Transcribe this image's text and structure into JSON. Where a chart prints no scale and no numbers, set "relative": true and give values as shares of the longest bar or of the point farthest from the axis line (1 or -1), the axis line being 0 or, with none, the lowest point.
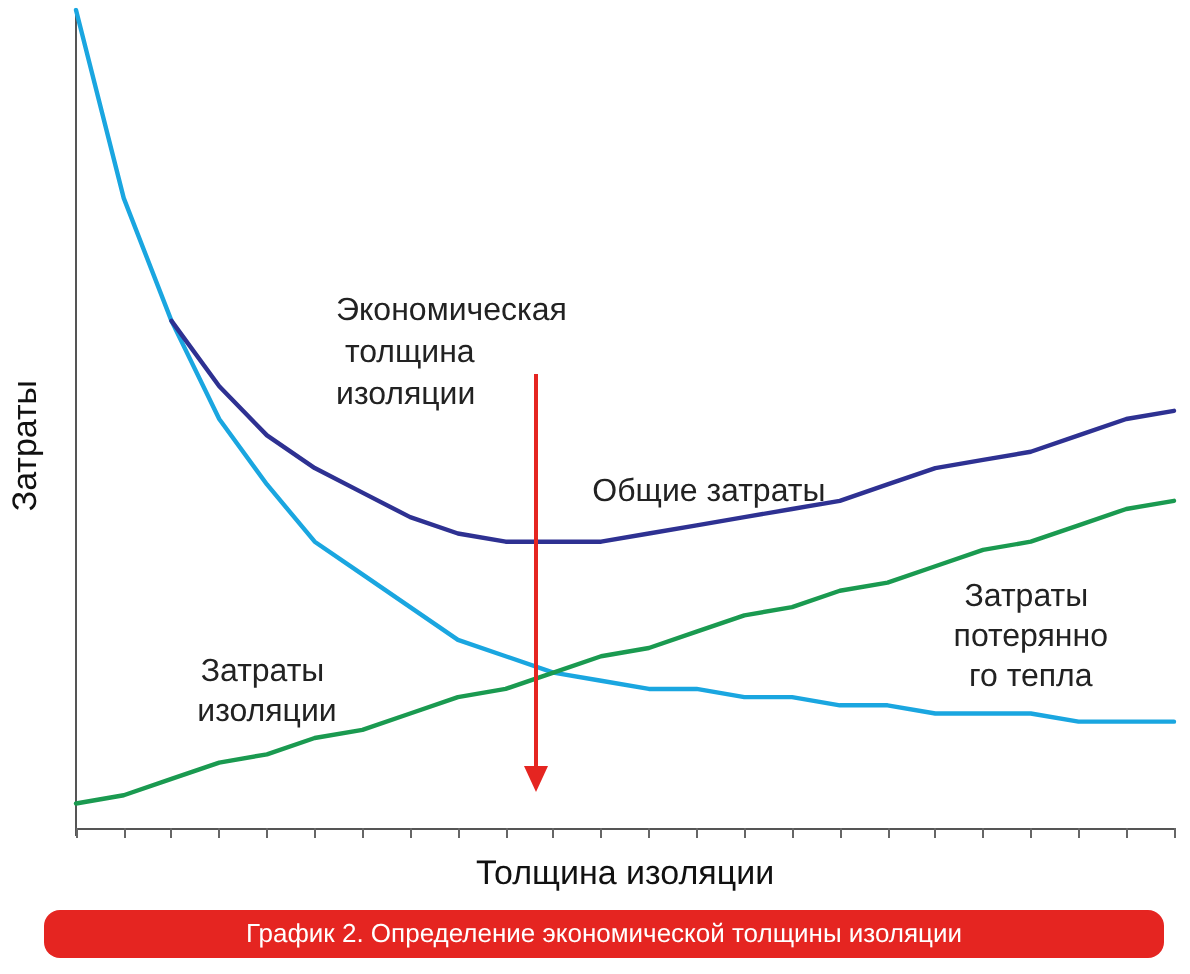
{
  "chart_data": {
    "type": "line",
    "relative": true,
    "title": "График 2. Определение экономической толщины изоляции",
    "xlabel": "Толщина изоляции",
    "ylabel": "Затраты",
    "annotations": [
      "Экономическая толщина изоляции"
    ],
    "categories": [
      null,
      null,
      null,
      null,
      null,
      null,
      null,
      null,
      null,
      null,
      null,
      null,
      null,
      null,
      null,
      null,
      null,
      null,
      null,
      null,
      null,
      null,
      null,
      null
    ],
    "series": [
      {
        "name": "Затраты потерянного тепла",
        "color": "#1aa6e0",
        "values": [
          1.0,
          0.77,
          0.62,
          0.5,
          0.42,
          0.35,
          0.31,
          0.27,
          0.23,
          0.21,
          0.19,
          0.18,
          0.17,
          0.17,
          0.16,
          0.16,
          0.15,
          0.15,
          0.14,
          0.14,
          0.14,
          0.13,
          0.13,
          0.13
        ]
      },
      {
        "name": "Общие затраты",
        "color": "#2e3192",
        "values": [
          null,
          null,
          0.62,
          0.54,
          0.48,
          0.44,
          0.41,
          0.38,
          0.36,
          0.35,
          0.35,
          0.35,
          0.36,
          0.37,
          0.38,
          0.39,
          0.4,
          0.42,
          0.44,
          0.45,
          0.46,
          0.48,
          0.5,
          0.51
        ]
      },
      {
        "name": "Затраты изоляции",
        "color": "#1a9a50",
        "values": [
          0.03,
          0.04,
          0.06,
          0.08,
          0.09,
          0.11,
          0.12,
          0.14,
          0.16,
          0.17,
          0.19,
          0.21,
          0.22,
          0.24,
          0.26,
          0.27,
          0.29,
          0.3,
          0.32,
          0.34,
          0.35,
          0.37,
          0.39,
          0.4
        ]
      }
    ],
    "legend": false,
    "marker": "none",
    "line_style": "solid",
    "grid": false
  }
}
